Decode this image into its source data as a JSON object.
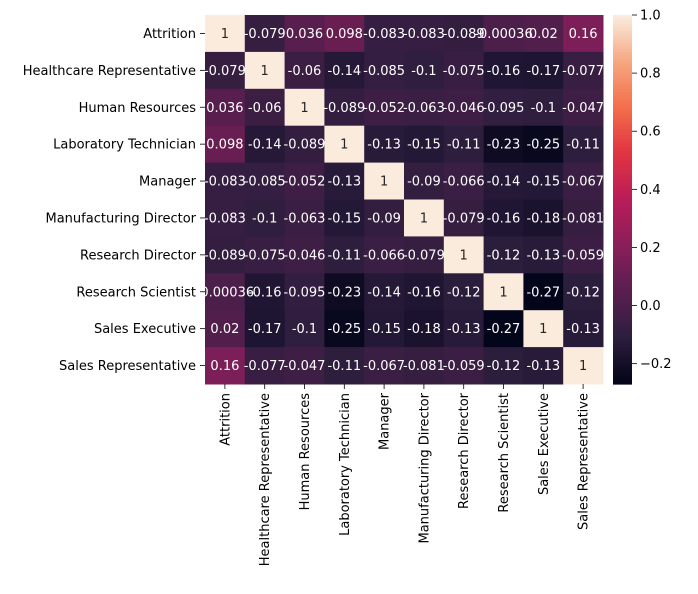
{
  "chart_data": {
    "type": "heatmap",
    "title": "",
    "xlabel": "",
    "ylabel": "",
    "row_labels": [
      "Attrition",
      "Healthcare Representative",
      "Human Resources",
      "Laboratory Technician",
      "Manager",
      "Manufacturing Director",
      "Research Director",
      "Research Scientist",
      "Sales Executive",
      "Sales Representative"
    ],
    "col_labels": [
      "Attrition",
      "Healthcare Representative",
      "Human Resources",
      "Laboratory Technician",
      "Manager",
      "Manufacturing Director",
      "Research Director",
      "Research Scientist",
      "Sales Executive",
      "Sales Representative"
    ],
    "values": [
      [
        1,
        -0.079,
        0.036,
        0.098,
        -0.083,
        -0.083,
        -0.089,
        -0.00036,
        0.02,
        0.16
      ],
      [
        -0.079,
        1,
        -0.06,
        -0.14,
        -0.085,
        -0.1,
        -0.075,
        -0.16,
        -0.17,
        -0.077
      ],
      [
        0.036,
        -0.06,
        1,
        -0.089,
        -0.052,
        -0.063,
        -0.046,
        -0.095,
        -0.1,
        -0.047
      ],
      [
        0.098,
        -0.14,
        -0.089,
        1,
        -0.13,
        -0.15,
        -0.11,
        -0.23,
        -0.25,
        -0.11
      ],
      [
        -0.083,
        -0.085,
        -0.052,
        -0.13,
        1,
        -0.09,
        -0.066,
        -0.14,
        -0.15,
        -0.067
      ],
      [
        -0.083,
        -0.1,
        -0.063,
        -0.15,
        -0.09,
        1,
        -0.079,
        -0.16,
        -0.18,
        -0.081
      ],
      [
        -0.089,
        -0.075,
        -0.046,
        -0.11,
        -0.066,
        -0.079,
        1,
        -0.12,
        -0.13,
        -0.059
      ],
      [
        -0.00036,
        -0.16,
        -0.095,
        -0.23,
        -0.14,
        -0.16,
        -0.12,
        1,
        -0.27,
        -0.12
      ],
      [
        0.02,
        -0.17,
        -0.1,
        -0.25,
        -0.15,
        -0.18,
        -0.13,
        -0.27,
        1,
        -0.13
      ],
      [
        0.16,
        -0.077,
        -0.047,
        -0.11,
        -0.067,
        -0.081,
        -0.059,
        -0.12,
        -0.13,
        1
      ]
    ],
    "annotations": [
      [
        "1",
        "-0.079",
        "0.036",
        "0.098",
        "-0.083",
        "-0.083",
        "-0.089",
        "-0.00036",
        "0.02",
        "0.16"
      ],
      [
        "-0.079",
        "1",
        "-0.06",
        "-0.14",
        "-0.085",
        "-0.1",
        "-0.075",
        "-0.16",
        "-0.17",
        "-0.077"
      ],
      [
        "0.036",
        "-0.06",
        "1",
        "-0.089",
        "-0.052",
        "-0.063",
        "-0.046",
        "-0.095",
        "-0.1",
        "-0.047"
      ],
      [
        "0.098",
        "-0.14",
        "-0.089",
        "1",
        "-0.13",
        "-0.15",
        "-0.11",
        "-0.23",
        "-0.25",
        "-0.11"
      ],
      [
        "-0.083",
        "-0.085",
        "-0.052",
        "-0.13",
        "1",
        "-0.09",
        "-0.066",
        "-0.14",
        "-0.15",
        "-0.067"
      ],
      [
        "-0.083",
        "-0.1",
        "-0.063",
        "-0.15",
        "-0.09",
        "1",
        "-0.079",
        "-0.16",
        "-0.18",
        "-0.081"
      ],
      [
        "-0.089",
        "-0.075",
        "-0.046",
        "-0.11",
        "-0.066",
        "-0.079",
        "1",
        "-0.12",
        "-0.13",
        "-0.059"
      ],
      [
        "-0.00036",
        "-0.16",
        "-0.095",
        "-0.23",
        "-0.14",
        "-0.16",
        "-0.12",
        "1",
        "-0.27",
        "-0.12"
      ],
      [
        "0.02",
        "-0.17",
        "-0.1",
        "-0.25",
        "-0.15",
        "-0.18",
        "-0.13",
        "-0.27",
        "1",
        "-0.13"
      ],
      [
        "0.16",
        "-0.077",
        "-0.047",
        "-0.11",
        "-0.067",
        "-0.081",
        "-0.059",
        "-0.12",
        "-0.13",
        "1"
      ]
    ],
    "colorbar": {
      "vmin": -0.27,
      "vmax": 1.0,
      "ticks": [
        -0.2,
        0.0,
        0.2,
        0.4,
        0.6,
        0.8,
        1.0
      ],
      "tick_labels": [
        "−0.2",
        "0.0",
        "0.2",
        "0.4",
        "0.6",
        "0.8",
        "1.0"
      ],
      "colormap": "rocket",
      "stops": [
        "#03051a",
        "#2d1e3e",
        "#5a1e4f",
        "#8a1e5a",
        "#b91d59",
        "#e13342",
        "#f36e4a",
        "#f6a67f",
        "#faebdd"
      ]
    },
    "grid": false,
    "legend": "none"
  }
}
